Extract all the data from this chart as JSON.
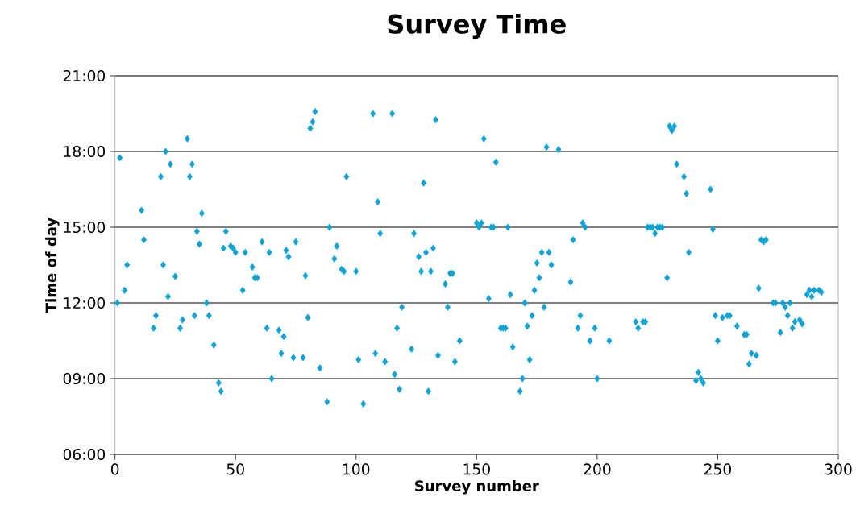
{
  "chart_data": {
    "type": "scatter",
    "title": "Survey Time",
    "xlabel": "Survey number",
    "ylabel": "Time of day",
    "xlim": [
      0,
      300
    ],
    "xticks": [
      0,
      50,
      100,
      150,
      200,
      250,
      300
    ],
    "ylim": [
      6,
      21
    ],
    "yticks": [
      {
        "value": 6,
        "label": "06:00"
      },
      {
        "value": 9,
        "label": "09:00"
      },
      {
        "value": 12,
        "label": "12:00"
      },
      {
        "value": 15,
        "label": "15:00"
      },
      {
        "value": 18,
        "label": "18:00"
      },
      {
        "value": 21,
        "label": "21:00"
      }
    ],
    "grid": "y",
    "marker": "diamond",
    "series": [
      {
        "color": "#0ea2d6",
        "x": [
          1,
          2,
          4,
          5,
          11,
          12,
          16,
          17,
          19,
          20,
          21,
          22,
          23,
          25,
          27,
          28,
          30,
          31,
          32,
          33,
          34,
          35,
          36,
          38,
          39,
          41,
          43,
          44,
          45,
          46,
          48,
          49,
          50,
          53,
          54,
          57,
          58,
          59,
          61,
          63,
          64,
          65,
          68,
          69,
          70,
          71,
          72,
          74,
          75,
          78,
          79,
          80,
          81,
          82,
          83,
          85,
          88,
          89,
          91,
          92,
          94,
          95,
          96,
          100,
          101,
          103,
          107,
          108,
          109,
          110,
          112,
          115,
          116,
          117,
          118,
          119,
          123,
          124,
          126,
          127,
          128,
          129,
          130,
          131,
          132,
          133,
          134,
          137,
          138,
          139,
          140,
          141,
          143,
          150,
          151,
          152,
          153,
          155,
          156,
          157,
          158,
          160,
          161,
          162,
          163,
          164,
          165,
          168,
          169,
          170,
          171,
          172,
          173,
          174,
          175,
          176,
          177,
          178,
          179,
          180,
          181,
          184,
          189,
          190,
          192,
          193,
          194,
          195,
          197,
          199,
          200,
          205,
          216,
          217,
          219,
          220,
          221,
          222,
          223,
          224,
          225,
          226,
          227,
          229,
          230,
          231,
          232,
          233,
          236,
          237,
          238,
          241,
          242,
          243,
          244,
          247,
          248,
          249,
          250,
          252,
          254,
          255,
          258,
          261,
          262,
          263,
          264,
          266,
          267,
          268,
          269,
          270,
          273,
          274,
          276,
          277,
          278,
          279,
          280,
          281,
          282,
          284,
          285,
          287,
          288,
          289,
          290,
          292,
          293
        ],
        "values": [
          12.0,
          17.75,
          12.5,
          13.5,
          15.67,
          14.5,
          11.0,
          11.5,
          17.0,
          13.5,
          18.0,
          12.25,
          17.5,
          13.05,
          11.0,
          11.33,
          18.5,
          17.0,
          17.5,
          11.5,
          14.83,
          14.33,
          15.55,
          12.0,
          11.5,
          10.33,
          8.83,
          8.5,
          14.17,
          14.83,
          14.25,
          14.17,
          14.0,
          12.5,
          14.0,
          13.42,
          13.0,
          13.0,
          14.42,
          11.0,
          14.0,
          9.0,
          10.92,
          10.0,
          10.67,
          14.08,
          13.83,
          9.83,
          14.42,
          9.83,
          13.08,
          11.42,
          18.92,
          19.17,
          19.58,
          9.42,
          8.08,
          15.0,
          13.75,
          14.25,
          13.33,
          13.25,
          17.0,
          13.25,
          9.75,
          8.0,
          19.5,
          10.0,
          16.0,
          14.75,
          9.67,
          19.5,
          9.17,
          11.0,
          8.58,
          11.83,
          10.17,
          14.75,
          13.83,
          13.25,
          16.75,
          14.0,
          8.5,
          13.25,
          14.17,
          19.25,
          9.92,
          12.75,
          11.83,
          13.17,
          13.17,
          9.67,
          10.5,
          15.17,
          15.0,
          15.17,
          18.5,
          12.17,
          15.0,
          15.0,
          17.58,
          11.0,
          11.0,
          11.0,
          15.0,
          12.33,
          10.25,
          8.5,
          9.0,
          12.0,
          11.08,
          9.75,
          11.5,
          12.5,
          13.58,
          13.0,
          14.0,
          11.83,
          18.17,
          14.0,
          13.5,
          18.08,
          12.83,
          14.5,
          11.0,
          11.5,
          15.17,
          15.0,
          10.5,
          11.0,
          9.0,
          10.5,
          11.25,
          11.0,
          11.25,
          11.25,
          15.0,
          15.0,
          15.0,
          14.75,
          15.0,
          15.0,
          15.0,
          13.0,
          19.0,
          18.83,
          19.0,
          17.5,
          17.0,
          16.33,
          14.0,
          8.92,
          9.25,
          9.0,
          8.83,
          16.5,
          14.92,
          11.5,
          10.5,
          11.42,
          11.5,
          11.5,
          11.08,
          10.75,
          10.75,
          9.58,
          10.0,
          9.92,
          12.58,
          14.5,
          14.42,
          14.5,
          12.0,
          12.0,
          10.83,
          12.0,
          11.83,
          11.5,
          12.0,
          11.0,
          11.25,
          11.33,
          11.17,
          12.33,
          12.5,
          12.25,
          12.5,
          12.5,
          12.42
        ]
      }
    ]
  }
}
